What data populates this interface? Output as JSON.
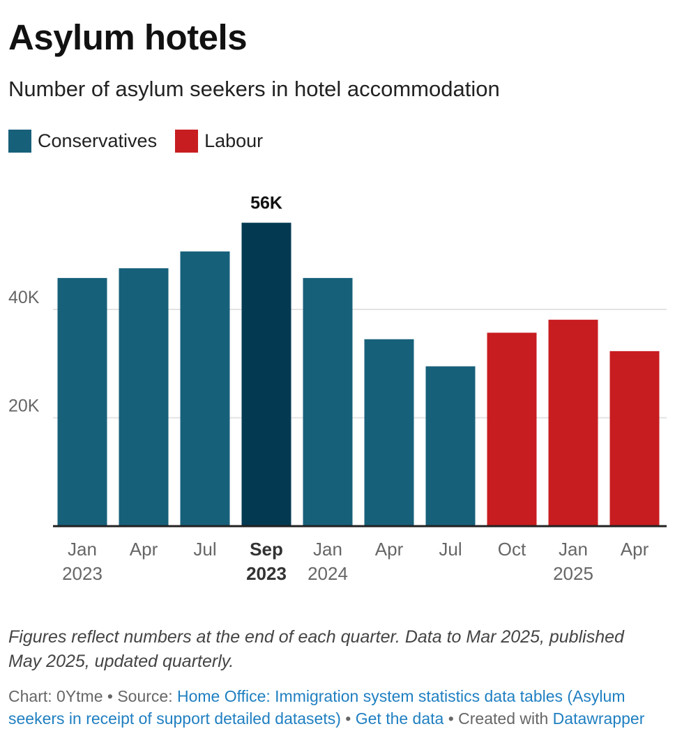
{
  "title": "Asylum hotels",
  "subtitle": "Number of asylum seekers in hotel accommodation",
  "legend": [
    {
      "label": "Conservatives",
      "color": "#17607a"
    },
    {
      "label": "Labour",
      "color": "#c81d20"
    }
  ],
  "colors": {
    "conservatives": "#17607a",
    "highlight": "#033a52",
    "labour": "#c81d20",
    "grid": "#e3e3e3",
    "axis": "#222222",
    "tick_label": "#666666"
  },
  "chart_data": {
    "type": "bar",
    "categories": [
      [
        "Jan",
        "2023"
      ],
      [
        "Apr",
        ""
      ],
      [
        "Jul",
        ""
      ],
      [
        "Sep",
        "2023"
      ],
      [
        "Jan",
        "2024"
      ],
      [
        "Apr",
        ""
      ],
      [
        "Jul",
        ""
      ],
      [
        "Oct",
        ""
      ],
      [
        "Jan",
        "2025"
      ],
      [
        "Apr",
        ""
      ]
    ],
    "values": [
      45800,
      47600,
      50700,
      56000,
      45800,
      34500,
      29500,
      35700,
      38100,
      32300
    ],
    "party": [
      "Conservatives",
      "Conservatives",
      "Conservatives",
      "Conservatives",
      "Conservatives",
      "Conservatives",
      "Conservatives",
      "Labour",
      "Labour",
      "Labour"
    ],
    "highlight_index": 3,
    "highlight_label": "56K",
    "yticks": [
      {
        "value": 20000,
        "label": "20K"
      },
      {
        "value": 40000,
        "label": "40K"
      }
    ],
    "ylim": [
      0,
      60000
    ],
    "grid": true,
    "legend_position": "top-left"
  },
  "notes": "Figures reflect numbers at the end of each quarter. Data to Mar 2025, published May 2025, updated quarterly.",
  "source": {
    "chart_prefix": "Chart: 0Ytme • Source: ",
    "source_link": "Home Office: Immigration system statistics data tables (Asylum seekers in receipt of support detailed datasets)",
    "separator": " • ",
    "get_data_link": "Get the data",
    "created_text": " • Created with ",
    "tool_link": "Datawrapper"
  }
}
